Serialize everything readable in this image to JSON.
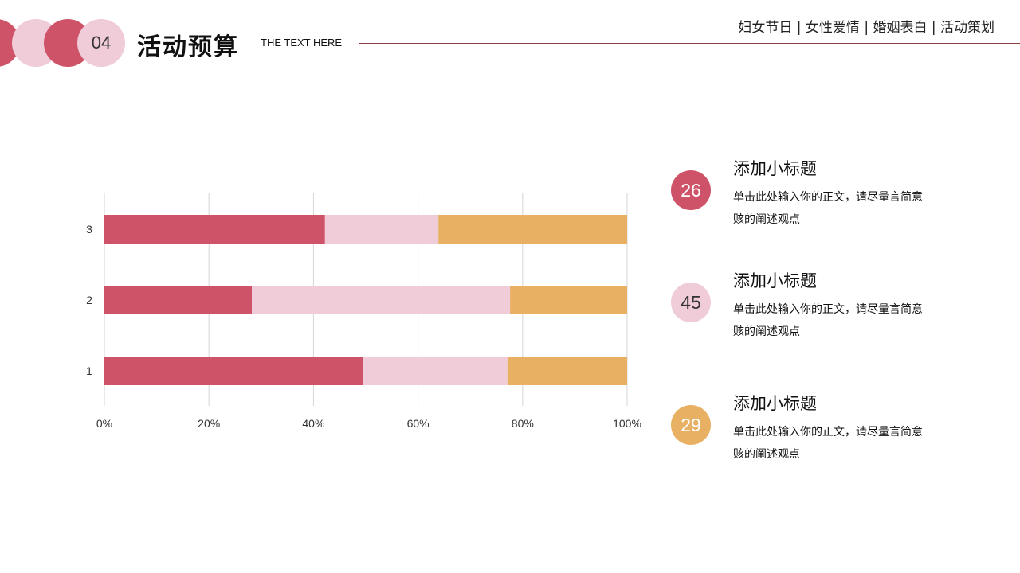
{
  "header": {
    "number": "04",
    "title": "活动预算",
    "subtitle": "THE TEXT HERE",
    "tags": "妇女节日 | 女性爱情 | 婚姻表白 | 活动策划"
  },
  "colors": {
    "red": "#cf5368",
    "pink": "#f0cbd8",
    "orange": "#e8b063"
  },
  "chart_data": {
    "type": "bar",
    "orientation": "horizontal",
    "stacked": "percent",
    "categories": [
      "1",
      "2",
      "3"
    ],
    "series": [
      {
        "values": [
          49.5,
          28.2,
          42.2
        ],
        "color": "#cf5368"
      },
      {
        "values": [
          27.6,
          49.4,
          21.7
        ],
        "color": "#f0cbd8"
      },
      {
        "values": [
          22.9,
          22.4,
          36.1
        ],
        "color": "#e8b063"
      }
    ],
    "xticks": [
      "0%",
      "20%",
      "40%",
      "60%",
      "80%",
      "100%"
    ],
    "xlim": [
      0,
      100
    ],
    "grid": true,
    "title": "",
    "xlabel": "",
    "ylabel": ""
  },
  "items": [
    {
      "number": "26",
      "title": "添加小标题",
      "body": "单击此处输入你的正文，请尽量言简意赅的阐述观点",
      "color": "#cf5368"
    },
    {
      "number": "45",
      "title": "添加小标题",
      "body": "单击此处输入你的正文，请尽量言简意赅的阐述观点",
      "color": "#f0cbd8"
    },
    {
      "number": "29",
      "title": "添加小标题",
      "body": "单击此处输入你的正文，请尽量言简意赅的阐述观点",
      "color": "#e8b063"
    }
  ]
}
